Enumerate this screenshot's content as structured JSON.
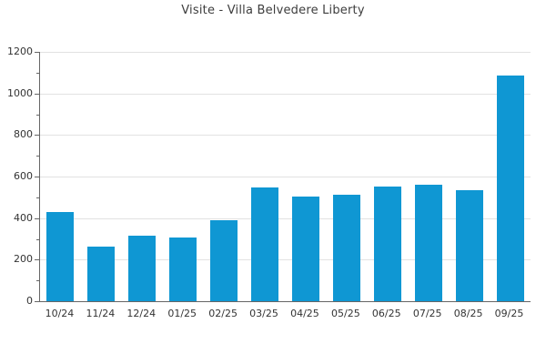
{
  "title": "Visite - Villa Belvedere Liberty",
  "chart_data": {
    "type": "bar",
    "title": "Visite - Villa Belvedere Liberty",
    "categories": [
      "10/24",
      "11/24",
      "12/24",
      "01/25",
      "02/25",
      "03/25",
      "04/25",
      "05/25",
      "06/25",
      "07/25",
      "08/25",
      "09/25"
    ],
    "values": [
      430,
      261,
      315,
      308,
      391,
      547,
      505,
      511,
      550,
      562,
      533,
      1086
    ],
    "xlabel": "",
    "ylabel": "",
    "ylim": [
      0,
      1200
    ],
    "ytick_step": 200,
    "ytick_labels": [
      "0",
      "200",
      "400",
      "600",
      "800",
      "1000",
      "1200"
    ],
    "minor_tick_step": 100,
    "grid": true,
    "legend": false
  },
  "colors": {
    "bar": "#0f97d3",
    "grid": "#e2e2e2",
    "axis": "#666666",
    "text": "#333333",
    "title": "#3d3d3d",
    "background": "#ffffff"
  }
}
